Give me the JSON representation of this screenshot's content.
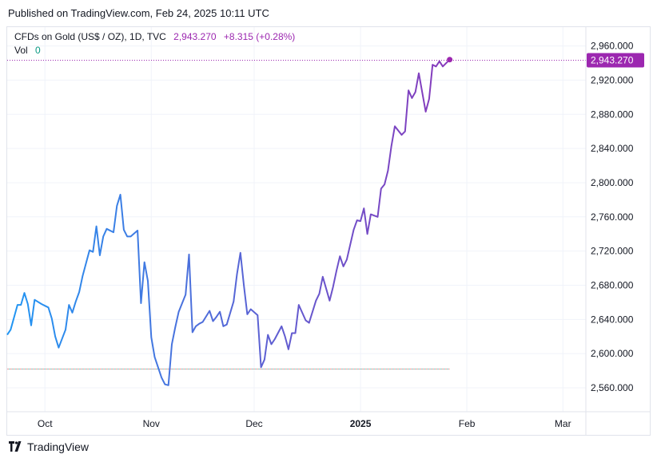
{
  "header": {
    "published": "Published on TradingView.com, Feb 24, 2025 10:11 UTC"
  },
  "legend": {
    "symbol": "CFDs on Gold (US$ / OZ), 1D, TVC",
    "price": "2,943.270",
    "change": "+8.315 (+0.28%)",
    "vol_label": "Vol",
    "vol_value": "0"
  },
  "price_label": "2,943.270",
  "footer": {
    "brand": "TradingView"
  },
  "colors": {
    "line_start": "#2196f3",
    "line_end": "#9c27b0",
    "grid": "#f0f3fa",
    "price_line": "#9c27b0"
  },
  "chart_data": {
    "type": "line",
    "title": "",
    "xlabel": "",
    "ylabel": "",
    "ylim": [
      2532,
      2982
    ],
    "y_ticks": [
      "2,560.000",
      "2,600.000",
      "2,640.000",
      "2,680.000",
      "2,720.000",
      "2,760.000",
      "2,800.000",
      "2,840.000",
      "2,880.000",
      "2,920.000",
      "2,960.000"
    ],
    "x_ticks": [
      {
        "label": "Oct",
        "date": "2024-10-01"
      },
      {
        "label": "Nov",
        "date": "2024-11-01"
      },
      {
        "label": "Dec",
        "date": "2024-12-01"
      },
      {
        "label": "2025",
        "date": "2025-01-01",
        "bold": true
      },
      {
        "label": "Feb",
        "date": "2025-02-01"
      },
      {
        "label": "Mar",
        "date": "2025-03-01"
      }
    ],
    "xlim": [
      "2024-09-20",
      "2025-03-07"
    ],
    "reference_level": 2582,
    "last_value": 2943.27,
    "series": [
      {
        "points": [
          [
            "2024-09-20",
            2622
          ],
          [
            "2024-09-21",
            2628
          ],
          [
            "2024-09-23",
            2657
          ],
          [
            "2024-09-24",
            2657
          ],
          [
            "2024-09-25",
            2671
          ],
          [
            "2024-09-26",
            2658
          ],
          [
            "2024-09-27",
            2633
          ],
          [
            "2024-09-28",
            2663
          ],
          [
            "2024-09-30",
            2658
          ],
          [
            "2024-10-01",
            2656
          ],
          [
            "2024-10-02",
            2654
          ],
          [
            "2024-10-03",
            2641
          ],
          [
            "2024-10-04",
            2620
          ],
          [
            "2024-10-05",
            2607
          ],
          [
            "2024-10-07",
            2628
          ],
          [
            "2024-10-08",
            2657
          ],
          [
            "2024-10-09",
            2648
          ],
          [
            "2024-10-10",
            2661
          ],
          [
            "2024-10-11",
            2672
          ],
          [
            "2024-10-12",
            2691
          ],
          [
            "2024-10-14",
            2721
          ],
          [
            "2024-10-15",
            2719
          ],
          [
            "2024-10-16",
            2749
          ],
          [
            "2024-10-17",
            2715
          ],
          [
            "2024-10-18",
            2737
          ],
          [
            "2024-10-19",
            2746
          ],
          [
            "2024-10-21",
            2742
          ],
          [
            "2024-10-22",
            2773
          ],
          [
            "2024-10-23",
            2786
          ],
          [
            "2024-10-24",
            2745
          ],
          [
            "2024-10-25",
            2737
          ],
          [
            "2024-10-26",
            2737
          ],
          [
            "2024-10-28",
            2744
          ],
          [
            "2024-10-29",
            2659
          ],
          [
            "2024-10-30",
            2707
          ],
          [
            "2024-10-31",
            2685
          ],
          [
            "2024-11-01",
            2619
          ],
          [
            "2024-11-02",
            2596
          ],
          [
            "2024-11-04",
            2572
          ],
          [
            "2024-11-05",
            2564
          ],
          [
            "2024-11-06",
            2563
          ],
          [
            "2024-11-07",
            2611
          ],
          [
            "2024-11-08",
            2631
          ],
          [
            "2024-11-09",
            2649
          ],
          [
            "2024-11-11",
            2669
          ],
          [
            "2024-11-12",
            2716
          ],
          [
            "2024-11-13",
            2625
          ],
          [
            "2024-11-14",
            2632
          ],
          [
            "2024-11-15",
            2635
          ],
          [
            "2024-11-16",
            2637
          ],
          [
            "2024-11-18",
            2650
          ],
          [
            "2024-11-19",
            2638
          ],
          [
            "2024-11-20",
            2643
          ],
          [
            "2024-11-21",
            2649
          ],
          [
            "2024-11-22",
            2632
          ],
          [
            "2024-11-23",
            2634
          ],
          [
            "2024-11-25",
            2661
          ],
          [
            "2024-11-26",
            2693
          ],
          [
            "2024-11-27",
            2718
          ],
          [
            "2024-11-28",
            2680
          ],
          [
            "2024-11-29",
            2646
          ],
          [
            "2024-11-30",
            2652
          ],
          [
            "2024-12-02",
            2645
          ],
          [
            "2024-12-03",
            2584
          ],
          [
            "2024-12-04",
            2593
          ],
          [
            "2024-12-05",
            2622
          ],
          [
            "2024-12-06",
            2611
          ],
          [
            "2024-12-07",
            2617
          ],
          [
            "2024-12-09",
            2632
          ],
          [
            "2024-12-10",
            2620
          ],
          [
            "2024-12-11",
            2605
          ],
          [
            "2024-12-12",
            2624
          ],
          [
            "2024-12-13",
            2624
          ],
          [
            "2024-12-14",
            2657
          ],
          [
            "2024-12-16",
            2639
          ],
          [
            "2024-12-17",
            2636
          ],
          [
            "2024-12-18",
            2649
          ],
          [
            "2024-12-19",
            2662
          ],
          [
            "2024-12-20",
            2670
          ],
          [
            "2024-12-21",
            2690
          ],
          [
            "2024-12-23",
            2662
          ],
          [
            "2024-12-24",
            2678
          ],
          [
            "2024-12-25",
            2697
          ],
          [
            "2024-12-26",
            2714
          ],
          [
            "2024-12-27",
            2702
          ],
          [
            "2024-12-28",
            2710
          ],
          [
            "2024-12-30",
            2745
          ],
          [
            "2024-12-31",
            2756
          ],
          [
            "2025-01-01",
            2755
          ],
          [
            "2025-01-02",
            2770
          ],
          [
            "2025-01-03",
            2740
          ],
          [
            "2025-01-04",
            2763
          ],
          [
            "2025-01-06",
            2760
          ],
          [
            "2025-01-07",
            2793
          ],
          [
            "2025-01-08",
            2798
          ],
          [
            "2025-01-09",
            2814
          ],
          [
            "2025-01-10",
            2843
          ],
          [
            "2025-01-11",
            2866
          ],
          [
            "2025-01-13",
            2856
          ],
          [
            "2025-01-14",
            2860
          ],
          [
            "2025-01-15",
            2908
          ],
          [
            "2025-01-16",
            2899
          ],
          [
            "2025-01-17",
            2906
          ],
          [
            "2025-01-18",
            2928
          ],
          [
            "2025-01-20",
            2883
          ],
          [
            "2025-01-21",
            2898
          ],
          [
            "2025-01-22",
            2938
          ],
          [
            "2025-01-23",
            2936
          ],
          [
            "2025-01-24",
            2942
          ],
          [
            "2025-01-25",
            2936
          ],
          [
            "2025-01-27",
            2944
          ]
        ]
      }
    ]
  }
}
